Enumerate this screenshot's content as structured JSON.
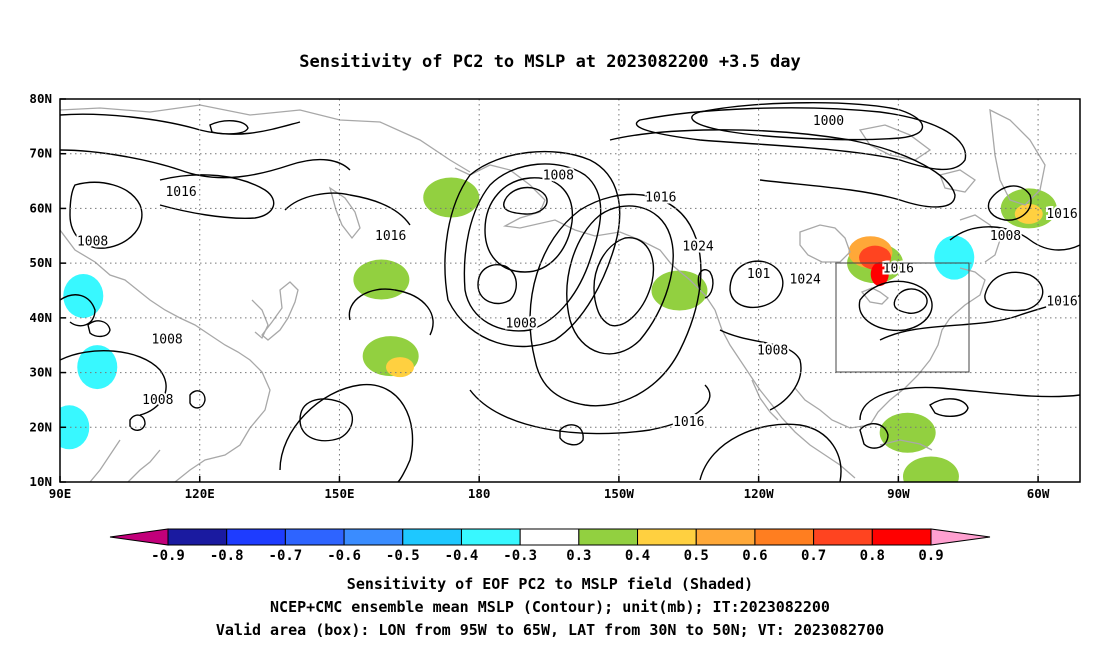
{
  "title": "Sensitivity of PC2 to MSLP at 2023082200 +3.5 day",
  "map": {
    "lon_labels": [
      "90E",
      "120E",
      "150E",
      "180",
      "150W",
      "120W",
      "90W",
      "60W"
    ],
    "lat_labels": [
      "80N",
      "70N",
      "60N",
      "50N",
      "40N",
      "30N",
      "20N",
      "10N"
    ],
    "lon_range_deg_east": [
      90,
      309
    ],
    "lat_range": [
      10,
      80
    ],
    "grid": "dotted",
    "valid_box": {
      "lon": [
        "95W",
        "65W"
      ],
      "lat": [
        "30N",
        "50N"
      ]
    }
  },
  "contours": {
    "unit": "mb",
    "labels": [
      {
        "text": "1000",
        "lon": 255,
        "lat": 76
      },
      {
        "text": "1008",
        "lon": 197,
        "lat": 66
      },
      {
        "text": "1016",
        "lon": 116,
        "lat": 63
      },
      {
        "text": "1008",
        "lon": 97,
        "lat": 54
      },
      {
        "text": "1016",
        "lon": 161,
        "lat": 55
      },
      {
        "text": "1016",
        "lon": 219,
        "lat": 62
      },
      {
        "text": "1024",
        "lon": 227,
        "lat": 53
      },
      {
        "text": "1008",
        "lon": 189,
        "lat": 39
      },
      {
        "text": "1008",
        "lon": 113,
        "lat": 36
      },
      {
        "text": "1008",
        "lon": 111,
        "lat": 25
      },
      {
        "text": "1016",
        "lon": 225,
        "lat": 21
      },
      {
        "text": "101",
        "lon": 240,
        "lat": 48
      },
      {
        "text": "1024",
        "lon": 250,
        "lat": 47
      },
      {
        "text": "1008",
        "lon": 243,
        "lat": 34
      },
      {
        "text": "1016",
        "lon": 270,
        "lat": 49
      },
      {
        "text": "1008",
        "lon": 293,
        "lat": 55
      },
      {
        "text": "1016",
        "lon": 310,
        "lat": 59
      },
      {
        "text": "1016",
        "lon": 311,
        "lat": 43
      }
    ]
  },
  "sensitivity_patches": [
    {
      "lon": 265,
      "lat": 50,
      "level": 0.3
    },
    {
      "lon": 264,
      "lat": 52,
      "level": 0.5
    },
    {
      "lon": 265,
      "lat": 51,
      "level": 0.7
    },
    {
      "lon": 266,
      "lat": 48,
      "level": 0.8
    },
    {
      "lon": 159,
      "lat": 47,
      "level": 0.3
    },
    {
      "lon": 161,
      "lat": 33,
      "level": 0.3
    },
    {
      "lon": 163,
      "lat": 31,
      "level": 0.4
    },
    {
      "lon": 174,
      "lat": 62,
      "level": 0.3
    },
    {
      "lon": 223,
      "lat": 45,
      "level": 0.3
    },
    {
      "lon": 298,
      "lat": 60,
      "level": 0.3
    },
    {
      "lon": 298,
      "lat": 59,
      "level": 0.4
    },
    {
      "lon": 272,
      "lat": 19,
      "level": 0.3
    },
    {
      "lon": 277,
      "lat": 11,
      "level": 0.3
    },
    {
      "lon": 282,
      "lat": 51,
      "level": -0.4
    },
    {
      "lon": 95,
      "lat": 44,
      "level": -0.4
    },
    {
      "lon": 98,
      "lat": 31,
      "level": -0.4
    },
    {
      "lon": 92,
      "lat": 20,
      "level": -0.4
    }
  ],
  "colorbar": {
    "tick_labels": [
      "-0.9",
      "-0.8",
      "-0.7",
      "-0.6",
      "-0.5",
      "-0.4",
      "-0.3",
      "0.3",
      "0.4",
      "0.5",
      "0.6",
      "0.7",
      "0.8",
      "0.9"
    ],
    "colors": [
      "#1a1aa0",
      "#1e3cff",
      "#2e64ff",
      "#3a8cff",
      "#1ec8ff",
      "#38f8ff",
      "#ffffff",
      "#92d040",
      "#ffd040",
      "#ffa838",
      "#ff7e20",
      "#ff4420",
      "#ff0000"
    ],
    "low_end_color": "#c2007a",
    "high_end_color": "#ffa0d0"
  },
  "footer": {
    "line1": "Sensitivity of EOF PC2 to MSLP field (Shaded)",
    "line2": "NCEP+CMC ensemble mean MSLP (Contour); unit(mb); IT:2023082200",
    "line3": "Valid area (box): LON from 95W to 65W, LAT from 30N to 50N; VT: 2023082700"
  }
}
